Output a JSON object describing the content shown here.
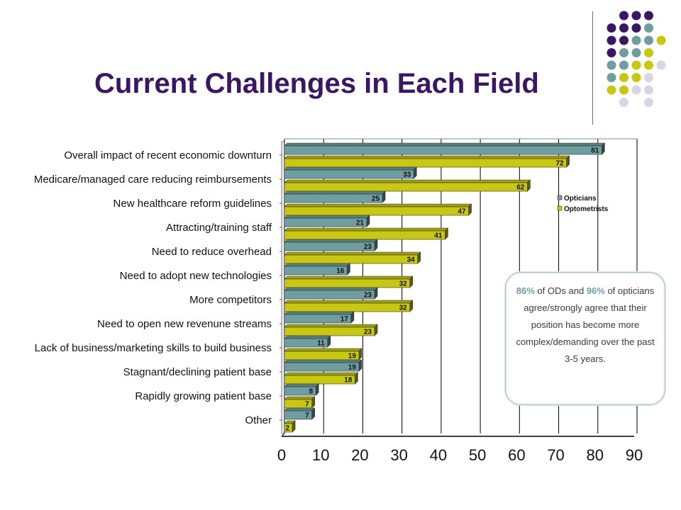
{
  "slide": {
    "title": "Current Challenges in Each Field"
  },
  "callout": {
    "pct_ods": "86%",
    "text_1": " of ODs and ",
    "pct_opticians": "96%",
    "text_2": " of opticians agree/strongly agree that their position has become more complex/demanding over the past 3-5 years."
  },
  "colors": {
    "purple": "#3a1763",
    "teal": "#6e9ea0",
    "yellow": "#c8c812",
    "lavender": "#d6d6e6"
  },
  "chart_data": {
    "type": "bar",
    "orientation": "horizontal",
    "title": "",
    "xlabel": "",
    "ylabel": "",
    "xlim": [
      0,
      90
    ],
    "xticks": [
      0,
      10,
      20,
      30,
      40,
      50,
      60,
      70,
      80,
      90
    ],
    "grid": "vertical",
    "legend_position": "right",
    "categories": [
      "Overall impact of recent economic downturn",
      "Medicare/managed care reducing reimbursements",
      "New healthcare reform guidelines",
      "Attracting/training staff",
      "Need to reduce overhead",
      "Need to adopt new technologies",
      "More competitors",
      "Need to open new revenune streams",
      "Lack of business/marketing skills to build business",
      "Stagnant/declining patient base",
      "Rapidly growing patient base",
      "Other"
    ],
    "series": [
      {
        "name": "Opticians",
        "color": "#6e9ea0",
        "values": [
          81,
          33,
          25,
          21,
          23,
          16,
          23,
          17,
          11,
          19,
          8,
          7
        ]
      },
      {
        "name": "Optometrists",
        "color": "#c8c812",
        "values": [
          72,
          62,
          47,
          41,
          34,
          32,
          32,
          23,
          19,
          18,
          7,
          2
        ]
      }
    ]
  }
}
